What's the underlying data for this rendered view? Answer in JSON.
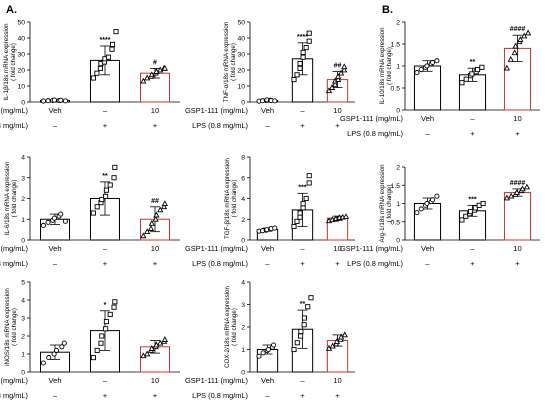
{
  "figure": {
    "panel_labels": [
      "A.",
      "B."
    ]
  },
  "chart_data": [
    {
      "id": "il1b",
      "type": "bar",
      "ylabel": "IL-1β/18s mRNA expression\n( fold change)",
      "ylim": [
        0,
        50
      ],
      "yticks": [
        0,
        10,
        20,
        30,
        40,
        50
      ],
      "categories": [
        "Veh",
        "–",
        "10"
      ],
      "lps": [
        "–",
        "+",
        "+"
      ],
      "values": [
        1,
        26,
        18
      ],
      "errors": [
        0.5,
        9,
        3
      ],
      "significance": [
        "",
        "****",
        "#"
      ],
      "points": [
        [
          0.6,
          0.8,
          1.0,
          1.2,
          0.9,
          1.1,
          0.7
        ],
        [
          15,
          18,
          21,
          24,
          25,
          27,
          28,
          33,
          36,
          44
        ],
        [
          13,
          15,
          16,
          17,
          18,
          19,
          20,
          21,
          21
        ]
      ]
    },
    {
      "id": "tnfa",
      "type": "bar",
      "ylabel": "TNF-α/18s mRNA expression\n( fold change)",
      "ylim": [
        0,
        50
      ],
      "yticks": [
        0,
        10,
        20,
        30,
        40,
        50
      ],
      "categories": [
        "Veh",
        "–",
        "10"
      ],
      "lps": [
        "–",
        "+",
        "+"
      ],
      "values": [
        1,
        27,
        14
      ],
      "errors": [
        0.6,
        10,
        5
      ],
      "significance": [
        "",
        "****",
        "##"
      ],
      "points": [
        [
          0.5,
          0.8,
          1.0,
          1.3,
          1.1,
          0.9,
          0.7
        ],
        [
          14,
          17,
          21,
          24,
          28,
          31,
          34,
          38,
          43
        ],
        [
          7,
          9,
          11,
          13,
          14,
          16,
          18,
          20,
          22
        ]
      ]
    },
    {
      "id": "il10",
      "type": "bar",
      "ylabel": "IL-10/18s mRNA expression\n( fold change)",
      "ylim": [
        0,
        2.0
      ],
      "yticks": [
        0,
        0.5,
        1.0,
        1.5,
        2.0
      ],
      "categories": [
        "Veh",
        "–",
        "10"
      ],
      "lps": [
        "–",
        "+",
        "+"
      ],
      "values": [
        1.0,
        0.8,
        1.4
      ],
      "errors": [
        0.12,
        0.15,
        0.3
      ],
      "significance": [
        "",
        "**",
        "####"
      ],
      "points": [
        [
          0.85,
          0.92,
          0.97,
          1.0,
          1.05,
          1.08,
          1.12
        ],
        [
          0.62,
          0.7,
          0.78,
          0.82,
          0.87,
          0.92,
          0.97
        ],
        [
          0.95,
          1.15,
          1.3,
          1.45,
          1.55,
          1.6,
          1.68,
          1.75
        ]
      ]
    },
    {
      "id": "il6",
      "type": "bar",
      "ylabel": "IL-6/18s mRNA expression\n( fold change)",
      "ylim": [
        0,
        4
      ],
      "yticks": [
        0,
        1,
        2,
        3,
        4
      ],
      "categories": [
        "Veh",
        "–",
        "10"
      ],
      "lps": [
        "–",
        "+",
        "+"
      ],
      "values": [
        1.0,
        2.0,
        1.0
      ],
      "errors": [
        0.25,
        0.8,
        0.6
      ],
      "significance": [
        "",
        "**",
        "##"
      ],
      "points": [
        [
          0.7,
          0.85,
          0.95,
          1.05,
          1.15,
          1.25,
          0.9
        ],
        [
          1.3,
          1.6,
          1.8,
          1.95,
          2.1,
          2.4,
          2.65,
          3.0,
          3.5
        ],
        [
          0.2,
          0.4,
          0.55,
          0.8,
          1.0,
          1.2,
          1.45,
          1.6,
          1.75
        ]
      ]
    },
    {
      "id": "tgfb",
      "type": "bar",
      "ylabel": "TGF-β/18s mRNA expression\n( fold change)",
      "ylim": [
        0,
        8
      ],
      "yticks": [
        0,
        2,
        4,
        6,
        8
      ],
      "categories": [
        "Veh",
        "–",
        "10"
      ],
      "lps": [
        "–",
        "+",
        "+"
      ],
      "values": [
        1.0,
        2.9,
        2.1
      ],
      "errors": [
        0.15,
        1.6,
        0.2
      ],
      "significance": [
        "",
        "***",
        ""
      ],
      "points": [
        [
          0.85,
          0.9,
          0.95,
          1.0,
          1.05,
          1.1,
          1.15
        ],
        [
          1.3,
          1.8,
          2.2,
          2.6,
          3.1,
          3.5,
          4.0,
          5.5,
          6.2
        ],
        [
          1.85,
          1.95,
          2.0,
          2.05,
          2.1,
          2.15,
          2.2,
          2.25
        ]
      ]
    },
    {
      "id": "arg1",
      "type": "bar",
      "ylabel": "Arg-1/18s mRNA expression\n( fold change)",
      "ylim": [
        0,
        2.0
      ],
      "yticks": [
        0,
        0.5,
        1.0,
        1.5,
        2.0
      ],
      "categories": [
        "Veh",
        "–",
        "10"
      ],
      "lps": [
        "–",
        "+",
        "+"
      ],
      "values": [
        1.0,
        0.8,
        1.3
      ],
      "errors": [
        0.15,
        0.15,
        0.1
      ],
      "significance": [
        "",
        "***",
        "####"
      ],
      "points": [
        [
          0.75,
          0.85,
          0.95,
          1.0,
          1.05,
          1.1,
          1.2
        ],
        [
          0.55,
          0.65,
          0.72,
          0.78,
          0.82,
          0.88,
          0.95,
          1.0
        ],
        [
          1.15,
          1.2,
          1.25,
          1.3,
          1.35,
          1.4,
          1.45
        ]
      ]
    },
    {
      "id": "inos",
      "type": "bar",
      "ylabel": "iNOS/18s mRNA expression\n( fold change)",
      "ylim": [
        0,
        5
      ],
      "yticks": [
        0,
        1,
        2,
        3,
        4,
        5
      ],
      "categories": [
        "Veh",
        "–",
        "10"
      ],
      "lps": [
        "–",
        "+",
        "+"
      ],
      "values": [
        1.1,
        2.3,
        1.4
      ],
      "errors": [
        0.4,
        1.1,
        0.35
      ],
      "significance": [
        "",
        "*",
        ""
      ],
      "points": [
        [
          0.5,
          0.8,
          1.0,
          1.2,
          1.4,
          1.6
        ],
        [
          0.8,
          1.2,
          1.6,
          2.0,
          2.4,
          2.8,
          3.2,
          3.6,
          3.9
        ],
        [
          0.9,
          1.0,
          1.2,
          1.3,
          1.4,
          1.5,
          1.6,
          1.7,
          1.8
        ]
      ]
    },
    {
      "id": "cox2",
      "type": "bar",
      "ylabel": "COX-2/18s mRNA expression\n( fold change)",
      "ylim": [
        0,
        4
      ],
      "yticks": [
        0,
        1,
        2,
        3,
        4
      ],
      "categories": [
        "Veh",
        "–",
        "10"
      ],
      "lps": [
        "–",
        "+",
        "+"
      ],
      "values": [
        1.0,
        1.9,
        1.4
      ],
      "errors": [
        0.2,
        0.85,
        0.25
      ],
      "significance": [
        "",
        "**",
        ""
      ],
      "points": [
        [
          0.7,
          0.85,
          0.95,
          1.0,
          1.1,
          1.2
        ],
        [
          1.0,
          1.3,
          1.6,
          1.8,
          2.1,
          2.4,
          2.9,
          3.3
        ],
        [
          1.05,
          1.15,
          1.25,
          1.35,
          1.45,
          1.55,
          1.65
        ]
      ]
    }
  ],
  "axis_rows": {
    "treatment_label": "GSP1-111 (mg/mL)",
    "lps_label": "LPS (0.8 mg/mL)"
  },
  "colors": {
    "axis": "#000000",
    "bar": "#000000",
    "bar_treated": "#c0392b",
    "marker_veh": "#000000",
    "marker_lps": "#000000",
    "marker_treated": "#000000",
    "highlight_point": "#e0609a"
  },
  "markers": [
    "circle",
    "square",
    "triangle"
  ]
}
